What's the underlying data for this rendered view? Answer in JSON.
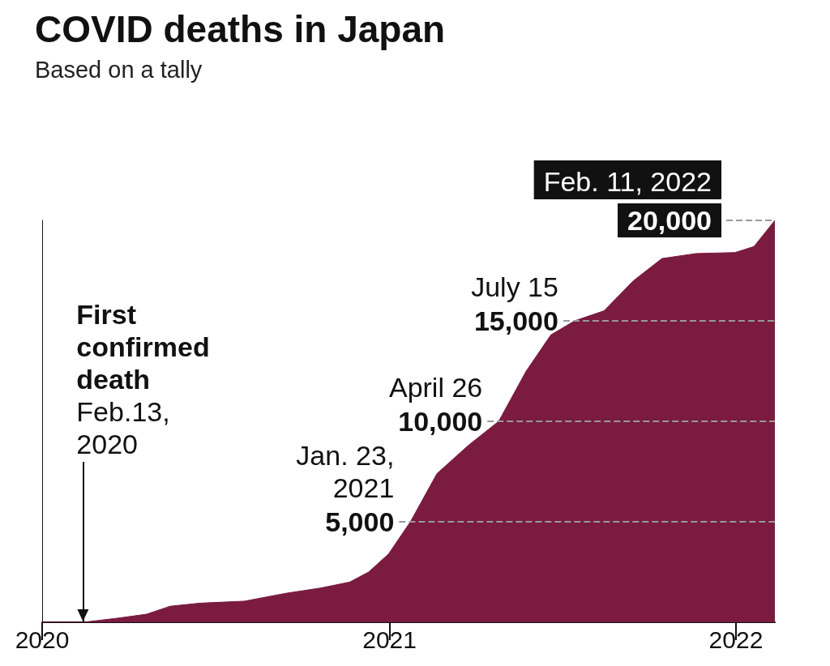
{
  "chart_data": {
    "type": "area",
    "title": "COVID deaths in Japan",
    "subtitle": "Based on a tally",
    "x": [
      "2020-01-01",
      "2020-02-13",
      "2020-03-20",
      "2020-04-20",
      "2020-05-15",
      "2020-06-15",
      "2020-08-01",
      "2020-09-15",
      "2020-10-20",
      "2020-11-20",
      "2020-12-10",
      "2020-12-31",
      "2021-01-23",
      "2021-02-20",
      "2021-03-25",
      "2021-04-26",
      "2021-05-25",
      "2021-06-20",
      "2021-07-15",
      "2021-08-15",
      "2021-09-15",
      "2021-10-15",
      "2021-11-20",
      "2021-12-31",
      "2022-01-20",
      "2022-02-11"
    ],
    "series": [
      {
        "color": "#7a1b3f",
        "values": [
          0,
          0,
          200,
          400,
          800,
          950,
          1050,
          1450,
          1700,
          2000,
          2500,
          3400,
          5000,
          7400,
          8800,
          10000,
          12500,
          14300,
          15000,
          15500,
          17000,
          18100,
          18350,
          18400,
          18700,
          20000
        ]
      }
    ],
    "xlim": [
      "2020-01-01",
      "2022-02-11"
    ],
    "xticks": [
      "2020",
      "2021",
      "2022"
    ],
    "ylim": [
      0,
      20000
    ],
    "tick_labels": "x",
    "ref_lines": [
      {
        "axis": "y",
        "value": 5000,
        "label": "5,000",
        "line_style": "dashed",
        "color": "#999999"
      },
      {
        "axis": "y",
        "value": 10000,
        "label": "10,000",
        "line_style": "dashed",
        "color": "#999999"
      },
      {
        "axis": "y",
        "value": 15000,
        "label": "15,000",
        "line_style": "dashed",
        "color": "#999999"
      },
      {
        "axis": "y",
        "value": 20000,
        "label": "20,000",
        "line_style": "dashed",
        "color": "#999999"
      }
    ],
    "annotations": [
      {
        "text": "First\nconfirmed\ndeath\nFeb.13,\n2020",
        "x": "2020-02-13",
        "y": 0
      },
      {
        "text": "Jan. 23,\n2021",
        "x": "2021-01-23",
        "y": 5000
      },
      {
        "text": "April 26",
        "x": "2021-04-26",
        "y": 10000
      },
      {
        "text": "July 15",
        "x": "2021-07-15",
        "y": 15000
      },
      {
        "text": "Feb. 11, 2022",
        "x": "2022-02-11",
        "y": 20000
      }
    ]
  }
}
